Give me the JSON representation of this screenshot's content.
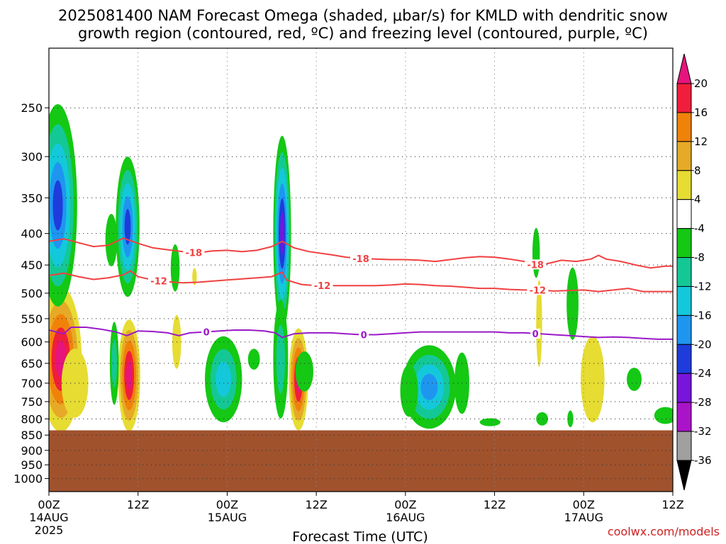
{
  "chart_data": {
    "type": "heatmap",
    "title_lines": [
      "2025081400 NAM Forecast Omega (shaded, μbar/s) for KMLD with dendritic snow",
      "growth region (contoured, red, ºC) and freezing level (contoured, purple, ºC)"
    ],
    "xlabel": "Forecast Time (UTC)",
    "credit": "coolwx.com/models",
    "x_ticks": [
      {
        "hour": 0,
        "label": "00Z",
        "sub": "14AUG",
        "sub2": "2025"
      },
      {
        "hour": 12,
        "label": "12Z",
        "sub": "",
        "sub2": ""
      },
      {
        "hour": 24,
        "label": "00Z",
        "sub": "15AUG",
        "sub2": ""
      },
      {
        "hour": 36,
        "label": "12Z",
        "sub": "",
        "sub2": ""
      },
      {
        "hour": 48,
        "label": "00Z",
        "sub": "16AUG",
        "sub2": ""
      },
      {
        "hour": 60,
        "label": "12Z",
        "sub": "",
        "sub2": ""
      },
      {
        "hour": 72,
        "label": "00Z",
        "sub": "17AUG",
        "sub2": ""
      },
      {
        "hour": 84,
        "label": "12Z",
        "sub": "",
        "sub2": ""
      }
    ],
    "x_range_hours": [
      0,
      84
    ],
    "y_range_mb": [
      1050,
      200
    ],
    "y_ticks": [
      250,
      300,
      350,
      400,
      450,
      500,
      550,
      600,
      650,
      700,
      750,
      800,
      850,
      900,
      950,
      1000
    ],
    "ground_level_mb": 835,
    "ground_color": "#a0522d",
    "colorbar": {
      "boundaries": [
        20,
        16,
        12,
        8,
        4,
        -4,
        -8,
        -12,
        -16,
        -20,
        -24,
        -28,
        -32,
        -36
      ],
      "colors": [
        "#f01e3c",
        "#f0820a",
        "#e6aa28",
        "#e6dc32",
        "#ffffff",
        "#14c814",
        "#14c896",
        "#14c8dc",
        "#1e96f0",
        "#1e3cdc",
        "#7814dc",
        "#aa14c8",
        "#a0a0a0"
      ],
      "top_arrow_color": "#e6147d",
      "bottom_arrow_color": "#000000"
    },
    "omega_blobs": [
      {
        "t": 1.6,
        "p": 640,
        "rt": 2.8,
        "rp": 170,
        "v": 24
      },
      {
        "t": 1.2,
        "p": 360,
        "rt": 2.6,
        "rp": 130,
        "v": -22
      },
      {
        "t": 3.5,
        "p": 700,
        "rt": 1.8,
        "rp": 90,
        "v": 6
      },
      {
        "t": 10.6,
        "p": 390,
        "rt": 1.6,
        "rp": 100,
        "v": -20
      },
      {
        "t": 10.8,
        "p": 680,
        "rt": 1.5,
        "rp": 140,
        "v": 22
      },
      {
        "t": 8.4,
        "p": 410,
        "rt": 0.8,
        "rp": 40,
        "v": -6
      },
      {
        "t": 8.8,
        "p": 650,
        "rt": 0.6,
        "rp": 100,
        "v": -10
      },
      {
        "t": 17.0,
        "p": 455,
        "rt": 0.6,
        "rp": 40,
        "v": -6
      },
      {
        "t": 17.2,
        "p": 600,
        "rt": 0.6,
        "rp": 60,
        "v": 6
      },
      {
        "t": 19.6,
        "p": 470,
        "rt": 0.3,
        "rp": 15,
        "v": 6
      },
      {
        "t": 23.5,
        "p": 690,
        "rt": 2.5,
        "rp": 110,
        "v": -14
      },
      {
        "t": 27.6,
        "p": 640,
        "rt": 0.8,
        "rp": 25,
        "v": -6
      },
      {
        "t": 31.4,
        "p": 400,
        "rt": 1.2,
        "rp": 140,
        "v": -24
      },
      {
        "t": 31.2,
        "p": 640,
        "rt": 1.0,
        "rp": 140,
        "v": -10
      },
      {
        "t": 33.6,
        "p": 690,
        "rt": 1.3,
        "rp": 130,
        "v": 20
      },
      {
        "t": 34.4,
        "p": 670,
        "rt": 1.2,
        "rp": 50,
        "v": -6
      },
      {
        "t": 51.2,
        "p": 710,
        "rt": 3.6,
        "rp": 110,
        "v": -16
      },
      {
        "t": 48.5,
        "p": 720,
        "rt": 1.2,
        "rp": 70,
        "v": -6
      },
      {
        "t": 55.6,
        "p": 700,
        "rt": 1.0,
        "rp": 80,
        "v": -6
      },
      {
        "t": 65.6,
        "p": 430,
        "rt": 0.5,
        "rp": 40,
        "v": -6
      },
      {
        "t": 66.0,
        "p": 560,
        "rt": 0.4,
        "rp": 90,
        "v": 6
      },
      {
        "t": 70.5,
        "p": 520,
        "rt": 0.8,
        "rp": 70,
        "v": -6
      },
      {
        "t": 73.2,
        "p": 690,
        "rt": 1.6,
        "rp": 110,
        "v": 6
      },
      {
        "t": 78.8,
        "p": 690,
        "rt": 1.0,
        "rp": 30,
        "v": -6
      },
      {
        "t": 59.4,
        "p": 810,
        "rt": 1.4,
        "rp": 12,
        "v": -6
      },
      {
        "t": 66.4,
        "p": 800,
        "rt": 0.8,
        "rp": 20,
        "v": -6
      },
      {
        "t": 70.2,
        "p": 800,
        "rt": 0.4,
        "rp": 25,
        "v": -6
      },
      {
        "t": 83.0,
        "p": 790,
        "rt": 1.5,
        "rp": 25,
        "v": -6
      }
    ],
    "contours": [
      {
        "name": "-18",
        "color": "#f04040",
        "label": "-18",
        "label_hours": [
          19.5,
          42.0,
          65.5
        ],
        "points": [
          [
            0,
            412
          ],
          [
            2,
            408
          ],
          [
            4,
            414
          ],
          [
            6,
            420
          ],
          [
            8,
            418
          ],
          [
            10,
            407
          ],
          [
            12,
            415
          ],
          [
            14,
            422
          ],
          [
            16,
            425
          ],
          [
            18,
            428
          ],
          [
            20,
            430
          ],
          [
            22,
            427
          ],
          [
            24,
            426
          ],
          [
            26,
            428
          ],
          [
            28,
            426
          ],
          [
            30,
            420
          ],
          [
            31.4,
            412
          ],
          [
            33,
            422
          ],
          [
            35,
            428
          ],
          [
            38,
            433
          ],
          [
            40,
            437
          ],
          [
            42,
            439
          ],
          [
            44,
            440
          ],
          [
            46,
            441
          ],
          [
            48,
            441
          ],
          [
            50,
            442
          ],
          [
            52,
            444
          ],
          [
            54,
            441
          ],
          [
            56,
            438
          ],
          [
            58,
            436
          ],
          [
            60,
            437
          ],
          [
            62,
            440
          ],
          [
            64,
            444
          ],
          [
            65.5,
            449
          ],
          [
            67,
            448
          ],
          [
            69,
            442
          ],
          [
            71,
            444
          ],
          [
            73,
            440
          ],
          [
            74,
            434
          ],
          [
            75,
            440
          ],
          [
            77,
            444
          ],
          [
            79,
            450
          ],
          [
            81,
            455
          ],
          [
            83,
            452
          ],
          [
            84,
            452
          ]
        ]
      },
      {
        "name": "-12",
        "color": "#f04040",
        "label": "-12",
        "label_hours": [
          14.8,
          36.8,
          65.8
        ],
        "points": [
          [
            0,
            468
          ],
          [
            2,
            464
          ],
          [
            4,
            470
          ],
          [
            6,
            475
          ],
          [
            8,
            472
          ],
          [
            10,
            467
          ],
          [
            11,
            460
          ],
          [
            12,
            470
          ],
          [
            14,
            476
          ],
          [
            16,
            479
          ],
          [
            18,
            481
          ],
          [
            20,
            480
          ],
          [
            22,
            478
          ],
          [
            24,
            476
          ],
          [
            26,
            474
          ],
          [
            28,
            472
          ],
          [
            30,
            470
          ],
          [
            31.4,
            462
          ],
          [
            32,
            476
          ],
          [
            34,
            484
          ],
          [
            36,
            486
          ],
          [
            38,
            486
          ],
          [
            40,
            486
          ],
          [
            42,
            486
          ],
          [
            44,
            486
          ],
          [
            46,
            485
          ],
          [
            48,
            483
          ],
          [
            50,
            484
          ],
          [
            52,
            486
          ],
          [
            54,
            487
          ],
          [
            56,
            489
          ],
          [
            58,
            491
          ],
          [
            60,
            491
          ],
          [
            62,
            493
          ],
          [
            64,
            494
          ],
          [
            66,
            494
          ],
          [
            68,
            496
          ],
          [
            70,
            495
          ],
          [
            72,
            494
          ],
          [
            74,
            497
          ],
          [
            76,
            494
          ],
          [
            78,
            491
          ],
          [
            80,
            497
          ],
          [
            82,
            497
          ],
          [
            84,
            497
          ]
        ]
      },
      {
        "name": "0",
        "color": "#9a19c8",
        "label": "0",
        "label_hours": [
          21.2,
          42.4,
          65.5
        ],
        "points": [
          [
            0,
            574
          ],
          [
            2,
            582
          ],
          [
            3,
            568
          ],
          [
            5,
            568
          ],
          [
            7,
            572
          ],
          [
            9,
            578
          ],
          [
            10.5,
            586
          ],
          [
            12,
            576
          ],
          [
            14,
            577
          ],
          [
            16,
            580
          ],
          [
            17.5,
            586
          ],
          [
            19,
            580
          ],
          [
            21,
            578
          ],
          [
            23,
            576
          ],
          [
            25,
            574
          ],
          [
            27,
            574
          ],
          [
            29,
            576
          ],
          [
            30.5,
            580
          ],
          [
            31.4,
            590
          ],
          [
            33,
            582
          ],
          [
            35,
            580
          ],
          [
            38,
            580
          ],
          [
            40,
            582
          ],
          [
            42,
            584
          ],
          [
            44,
            584
          ],
          [
            46,
            582
          ],
          [
            48,
            580
          ],
          [
            50,
            578
          ],
          [
            52,
            578
          ],
          [
            54,
            578
          ],
          [
            56,
            578
          ],
          [
            58,
            578
          ],
          [
            60,
            578
          ],
          [
            62,
            580
          ],
          [
            64,
            580
          ],
          [
            66,
            582
          ],
          [
            68,
            584
          ],
          [
            70,
            586
          ],
          [
            72,
            588
          ],
          [
            74,
            590
          ],
          [
            76,
            589
          ],
          [
            78,
            590
          ],
          [
            80,
            592
          ],
          [
            82,
            594
          ],
          [
            84,
            594
          ]
        ]
      }
    ]
  }
}
